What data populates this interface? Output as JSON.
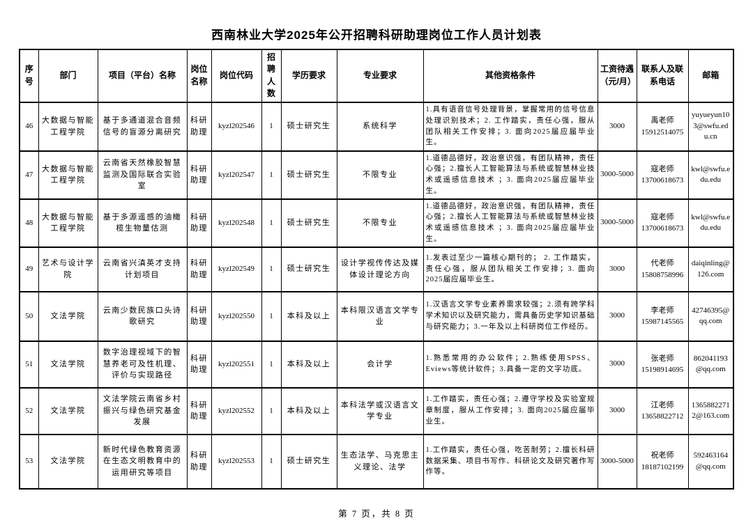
{
  "document": {
    "title": "西南林业大学2025年公开招聘科研助理岗位工作人员计划表",
    "footer": "第 7 页，共 8 页"
  },
  "table": {
    "headers": [
      "序号",
      "部门",
      "项目（平台）名称",
      "岗位名称",
      "岗位代码",
      "招聘人数",
      "学历要求",
      "专业要求",
      "其他资格条件",
      "工资待遇（元/月）",
      "联系人及联系电话",
      "邮箱"
    ],
    "rows": [
      {
        "no": "46",
        "dept": "大数据与智能工程学院",
        "project": "基于多通道混合音频信号的盲源分离研究",
        "post": "科研助理",
        "code": "kyzl202546",
        "count": "1",
        "edu": "硕士研究生",
        "major": "系统科学",
        "other": "1.具有语音信号处理背景，掌握常用的信号信息处理识别技术；2. 工作踏实，责任心强，服从团队相关工作安排；3. 面向2025届应届毕业生。",
        "salary": "3000",
        "contact": "禹老师",
        "phone": "15912514075",
        "email": "yuyueyun103@swfu.edu.cn"
      },
      {
        "no": "47",
        "dept": "大数据与智能工程学院",
        "project": "云南省天然橡胶智慧监测及国际联合实验室",
        "post": "科研助理",
        "code": "kyzl202547",
        "count": "1",
        "edu": "硕士研究生",
        "major": "不限专业",
        "other": "1.道德品德好，政治意识强，有团队精神，责任心强；2.擅长人工智能算法与系统或智慧林业技术或遥感信息技术 ；3. 面向2025届应届毕业生。",
        "salary": "3000-5000",
        "contact": "寇老师",
        "phone": "13700618673",
        "email": "kwl@swfu.edu.edu"
      },
      {
        "no": "48",
        "dept": "大数据与智能工程学院",
        "project": "基于多源遥感的油橄榄生物量估测",
        "post": "科研助理",
        "code": "kyzl202548",
        "count": "1",
        "edu": "硕士研究生",
        "major": "不限专业",
        "other": "1.道德品德好，政治意识强，有团队精神，责任心强；2.擅长人工智能算法与系统或智慧林业技术或遥感信息技术 ；3. 面向2025届应届毕业生。",
        "salary": "3000-5000",
        "contact": "寇老师",
        "phone": "13700618673",
        "email": "kwl@swfu.edu.edu"
      },
      {
        "no": "49",
        "dept": "艺术与设计学院",
        "project": "云南省兴滇英才支持计划项目",
        "post": "科研助理",
        "code": "kyzl202549",
        "count": "1",
        "edu": "硕士研究生",
        "major": "设计学视传传达及媒体设计理论方向",
        "other": "1.发表过至少一篇核心期刊的； 2. 工作踏实，责任心强，服从团队相关工作安排；3. 面向2025届应届毕业生。",
        "salary": "3000",
        "contact": "代老师",
        "phone": "15808758996",
        "email": "daiqinling@126.com"
      },
      {
        "no": "50",
        "dept": "文法学院",
        "project": "云南少数民族口头诗歌研究",
        "post": "科研助理",
        "code": "kyzl202550",
        "count": "1",
        "edu": "本科及以上",
        "major": "本科限汉语言文学专业",
        "other": "1.汉语言文学专业素养需求较强；2.须有跨学科学术知识以及研究能力，需具备历史学知识基础与研究能力；3.一年及以上科研岗位工作经历。",
        "salary": "3000",
        "contact": "李老师",
        "phone": "15987145565",
        "email": "42746395@qq.com"
      },
      {
        "no": "51",
        "dept": "文法学院",
        "project": "数字治理视域下的智慧养老可及性机理、评价与实现路径",
        "post": "科研助理",
        "code": "kyzl202551",
        "count": "1",
        "edu": "本科及以上",
        "major": "会计学",
        "other": "1.熟悉常用的办公软件；2.熟练使用SPSS、Eviews等统计软件；3.具备一定的文字功底。",
        "salary": "3000",
        "contact": "张老师",
        "phone": "15198914695",
        "email": "862041193@qq.com"
      },
      {
        "no": "52",
        "dept": "文法学院",
        "project": "文法学院云南省乡村振兴与绿色研究基金发展",
        "post": "科研助理",
        "code": "kyzl202552",
        "count": "1",
        "edu": "本科及以上",
        "major": "本科法学或汉语言文学专业",
        "other": "1.工作踏实，责任心强；2.遵守学校及实验室规章制度，服从工作安排；3. 面向2025届应届毕业生。",
        "salary": "3000",
        "contact": "江老师",
        "phone": "13658822712",
        "email": "13658822712@163.com"
      },
      {
        "no": "53",
        "dept": "文法学院",
        "project": "新时代绿色教育资源在生态文明教育中的运用研究等项目",
        "post": "科研助理",
        "code": "kyzl202553",
        "count": "1",
        "edu": "硕士研究生",
        "major": "生态法学、马克思主义理论、法学",
        "other": "1.工作踏实，责任心强，吃苦耐劳；2.擅长科研数据采集、项目书写作、科研论文及研究著作写作等。",
        "salary": "3000-5000",
        "contact": "祝老师",
        "phone": "18187102199",
        "email": "592463164@qq.com"
      }
    ]
  }
}
